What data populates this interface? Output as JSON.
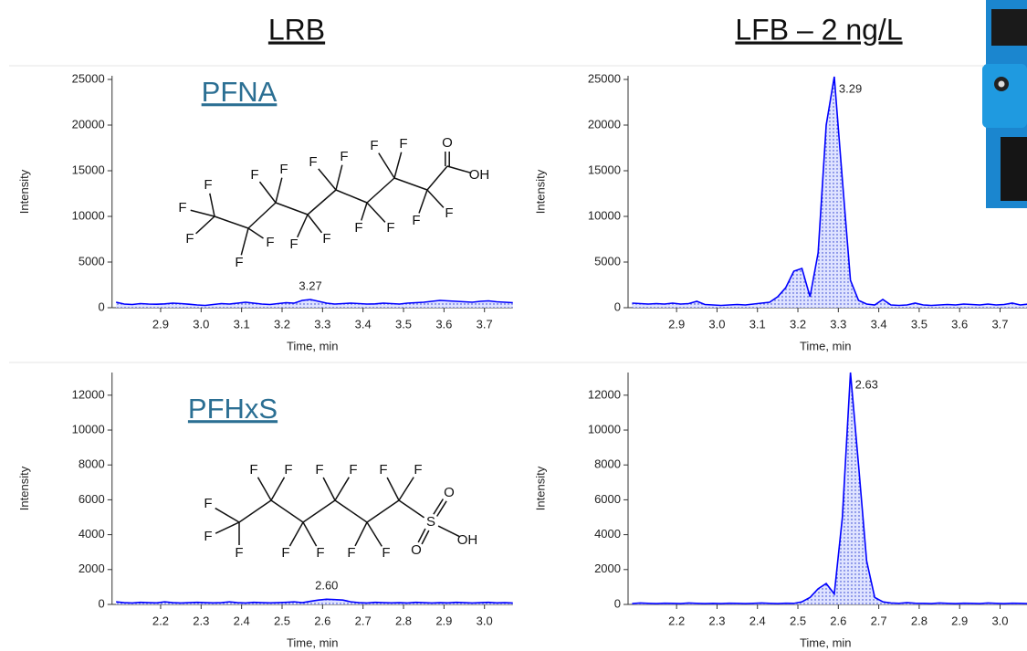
{
  "columns": [
    "LRB",
    "LFB – 2 ng/L"
  ],
  "chart_data": [
    {
      "type": "line",
      "xlabel": "Time, min",
      "ylabel": "Intensity",
      "color": "#0000ff",
      "annotation": "PFNA",
      "peak_label": "3.27",
      "structure_atoms": [
        "F",
        "F",
        "F",
        "F",
        "F",
        "F",
        "F",
        "F",
        "F",
        "F",
        "F",
        "F",
        "F",
        "F",
        "F",
        "F",
        "F",
        "O",
        "OH"
      ],
      "x": [
        2.79,
        2.81,
        2.83,
        2.85,
        2.87,
        2.89,
        2.91,
        2.93,
        2.95,
        2.97,
        2.99,
        3.01,
        3.03,
        3.05,
        3.07,
        3.09,
        3.11,
        3.13,
        3.15,
        3.17,
        3.19,
        3.21,
        3.23,
        3.25,
        3.27,
        3.29,
        3.31,
        3.33,
        3.35,
        3.37,
        3.39,
        3.41,
        3.43,
        3.45,
        3.47,
        3.49,
        3.51,
        3.53,
        3.55,
        3.57,
        3.59,
        3.61,
        3.63,
        3.65,
        3.67,
        3.69,
        3.71,
        3.73,
        3.75,
        3.77
      ],
      "values": [
        600,
        400,
        350,
        450,
        400,
        380,
        420,
        500,
        450,
        380,
        300,
        250,
        350,
        450,
        400,
        500,
        600,
        500,
        400,
        350,
        450,
        550,
        500,
        800,
        900,
        700,
        500,
        400,
        450,
        500,
        450,
        400,
        420,
        500,
        450,
        400,
        500,
        550,
        600,
        700,
        800,
        750,
        700,
        650,
        600,
        700,
        750,
        650,
        600,
        550
      ],
      "xlim": [
        2.78,
        3.77
      ],
      "ylim": [
        0,
        25400
      ],
      "xticks": [
        2.9,
        {
          "value": 3,
          "label": "3.0"
        },
        3.1,
        3.2,
        3.3,
        3.4,
        3.5,
        3.6,
        3.7
      ],
      "yticks": [
        0,
        5000,
        10000,
        15000,
        20000,
        25000
      ]
    },
    {
      "type": "line",
      "xlabel": "Time, min",
      "ylabel": "Intensity",
      "color": "#0000ff",
      "peak_label": "3.29",
      "x": [
        2.79,
        2.81,
        2.83,
        2.85,
        2.87,
        2.89,
        2.91,
        2.93,
        2.95,
        2.97,
        2.99,
        3.01,
        3.03,
        3.05,
        3.07,
        3.09,
        3.11,
        3.13,
        3.15,
        3.17,
        3.19,
        3.21,
        3.23,
        3.25,
        3.27,
        3.29,
        3.31,
        3.33,
        3.35,
        3.37,
        3.39,
        3.41,
        3.43,
        3.45,
        3.47,
        3.49,
        3.51,
        3.53,
        3.55,
        3.57,
        3.59,
        3.61,
        3.63,
        3.65,
        3.67,
        3.69,
        3.71,
        3.73,
        3.75,
        3.77
      ],
      "values": [
        500,
        450,
        400,
        450,
        400,
        500,
        400,
        450,
        700,
        350,
        300,
        250,
        300,
        350,
        300,
        400,
        500,
        600,
        1200,
        2200,
        4000,
        4300,
        1200,
        6000,
        20000,
        25300,
        14000,
        3000,
        800,
        400,
        300,
        900,
        300,
        250,
        300,
        500,
        300,
        250,
        300,
        350,
        300,
        400,
        350,
        300,
        400,
        300,
        350,
        500,
        300,
        400
      ],
      "xlim": [
        2.78,
        3.77
      ],
      "ylim": [
        0,
        25400
      ],
      "xticks": [
        2.9,
        {
          "value": 3,
          "label": "3.0"
        },
        3.1,
        3.2,
        3.3,
        3.4,
        3.5,
        3.6,
        3.7
      ],
      "yticks": [
        0,
        5000,
        10000,
        15000,
        20000,
        25000
      ]
    },
    {
      "type": "line",
      "xlabel": "Time, min",
      "ylabel": "Intensity",
      "color": "#0000ff",
      "annotation": "PFHxS",
      "peak_label": "2.60",
      "structure_atoms": [
        "F",
        "F",
        "F",
        "F",
        "F",
        "F",
        "F",
        "F",
        "F",
        "F",
        "F",
        "F",
        "F",
        "S",
        "O",
        "O",
        "OH"
      ],
      "x": [
        2.09,
        2.11,
        2.13,
        2.15,
        2.17,
        2.19,
        2.21,
        2.23,
        2.25,
        2.27,
        2.29,
        2.31,
        2.33,
        2.35,
        2.37,
        2.39,
        2.41,
        2.43,
        2.45,
        2.47,
        2.49,
        2.51,
        2.53,
        2.55,
        2.57,
        2.59,
        2.61,
        2.63,
        2.65,
        2.67,
        2.69,
        2.71,
        2.73,
        2.75,
        2.77,
        2.79,
        2.81,
        2.83,
        2.85,
        2.87,
        2.89,
        2.91,
        2.93,
        2.95,
        2.97,
        2.99,
        3.01,
        3.03,
        3.05,
        3.07
      ],
      "values": [
        150,
        100,
        80,
        120,
        100,
        90,
        150,
        100,
        80,
        100,
        120,
        100,
        90,
        100,
        150,
        100,
        80,
        120,
        100,
        90,
        100,
        120,
        150,
        100,
        180,
        250,
        300,
        280,
        250,
        150,
        100,
        80,
        120,
        100,
        90,
        100,
        80,
        120,
        100,
        80,
        100,
        90,
        120,
        100,
        80,
        100,
        120,
        90,
        100,
        80
      ],
      "xlim": [
        2.08,
        3.07
      ],
      "ylim": [
        0,
        13300
      ],
      "xticks": [
        2.2,
        2.3,
        2.4,
        2.5,
        2.6,
        2.7,
        2.8,
        2.9,
        {
          "value": 3,
          "label": "3.0"
        }
      ],
      "yticks": [
        0,
        2000,
        4000,
        6000,
        8000,
        10000,
        12000
      ]
    },
    {
      "type": "line",
      "xlabel": "Time, min",
      "ylabel": "Intensity",
      "color": "#0000ff",
      "peak_label": "2.63",
      "x": [
        2.09,
        2.11,
        2.13,
        2.15,
        2.17,
        2.19,
        2.21,
        2.23,
        2.25,
        2.27,
        2.29,
        2.31,
        2.33,
        2.35,
        2.37,
        2.39,
        2.41,
        2.43,
        2.45,
        2.47,
        2.49,
        2.51,
        2.53,
        2.55,
        2.57,
        2.59,
        2.61,
        2.63,
        2.65,
        2.67,
        2.69,
        2.71,
        2.73,
        2.75,
        2.77,
        2.79,
        2.81,
        2.83,
        2.85,
        2.87,
        2.89,
        2.91,
        2.93,
        2.95,
        2.97,
        2.99,
        3.01,
        3.03,
        3.05,
        3.07
      ],
      "values": [
        50,
        80,
        60,
        50,
        70,
        60,
        50,
        80,
        60,
        50,
        60,
        50,
        70,
        60,
        50,
        60,
        80,
        60,
        50,
        70,
        60,
        150,
        400,
        900,
        1200,
        600,
        5000,
        13300,
        8000,
        2500,
        400,
        150,
        80,
        60,
        100,
        70,
        60,
        50,
        80,
        60,
        50,
        70,
        60,
        50,
        80,
        60,
        50,
        70,
        60,
        50
      ],
      "xlim": [
        2.08,
        3.07
      ],
      "ylim": [
        0,
        13300
      ],
      "xticks": [
        2.2,
        2.3,
        2.4,
        2.5,
        2.6,
        2.7,
        2.8,
        2.9,
        {
          "value": 3,
          "label": "3.0"
        }
      ],
      "yticks": [
        0,
        2000,
        4000,
        6000,
        8000,
        10000,
        12000
      ]
    }
  ]
}
